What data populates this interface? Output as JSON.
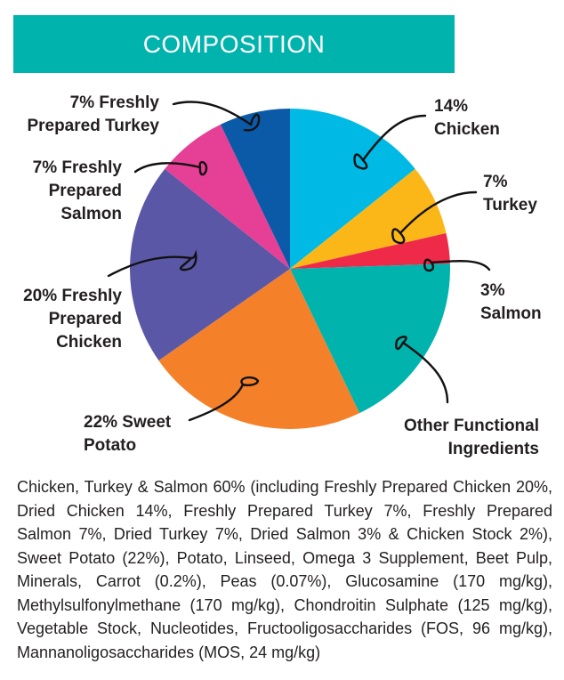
{
  "header": {
    "title": "COMPOSITION",
    "bg_color": "#00b3ad"
  },
  "chart_data": {
    "type": "pie",
    "title": "COMPOSITION",
    "start_angle_deg": 0,
    "direction": "clockwise",
    "slices": [
      {
        "label": "14% Chicken",
        "value": 14,
        "color": "#00bae5"
      },
      {
        "label": "7% Turkey",
        "value": 7,
        "color": "#fbb718"
      },
      {
        "label": "3% Salmon",
        "value": 3,
        "color": "#ee2a48"
      },
      {
        "label": "Other Functional Ingredients",
        "value": 18,
        "color": "#00b3ad"
      },
      {
        "label": "22% Sweet Potato",
        "value": 22,
        "color": "#f4812a"
      },
      {
        "label": "20% Freshly Prepared Chicken",
        "value": 20,
        "color": "#5a58a6"
      },
      {
        "label": "7% Freshly Prepared Salmon",
        "value": 7,
        "color": "#e63f96"
      },
      {
        "label": "7% Freshly Prepared Turkey",
        "value": 7,
        "color": "#0a5aa8"
      }
    ],
    "legend": "callout labels with hand-drawn arrows"
  },
  "labels": {
    "chicken": [
      "14%",
      "Chicken"
    ],
    "turkey": [
      "7%",
      "Turkey"
    ],
    "salmon": [
      "3%",
      "Salmon"
    ],
    "other": [
      "Other Functional",
      "Ingredients"
    ],
    "sweet_potato": [
      "22% Sweet",
      "Potato"
    ],
    "fp_chicken": [
      "20% Freshly",
      "Prepared",
      "Chicken"
    ],
    "fp_salmon": [
      "7% Freshly",
      "Prepared",
      "Salmon"
    ],
    "fp_turkey": [
      "7% Freshly",
      "Prepared Turkey"
    ]
  },
  "description": "Chicken, Turkey & Salmon 60% (including Freshly Prepared Chicken 20%, Dried Chicken 14%, Freshly Prepared Turkey 7%, Freshly Prepared Salmon 7%, Dried Turkey 7%, Dried Salmon 3% & Chicken Stock 2%), Sweet Potato (22%), Potato, Linseed, Omega 3 Supplement, Beet Pulp, Minerals, Carrot (0.2%), Peas (0.07%), Glucosamine (170 mg/kg), Methylsulfonylmethane (170 mg/kg), Chondroitin Sulphate (125 mg/kg), Vegetable Stock, Nucleotides, Fructooligosaccharides (FOS, 96 mg/kg),  Mannanoligosaccharides (MOS, 24 mg/kg)"
}
